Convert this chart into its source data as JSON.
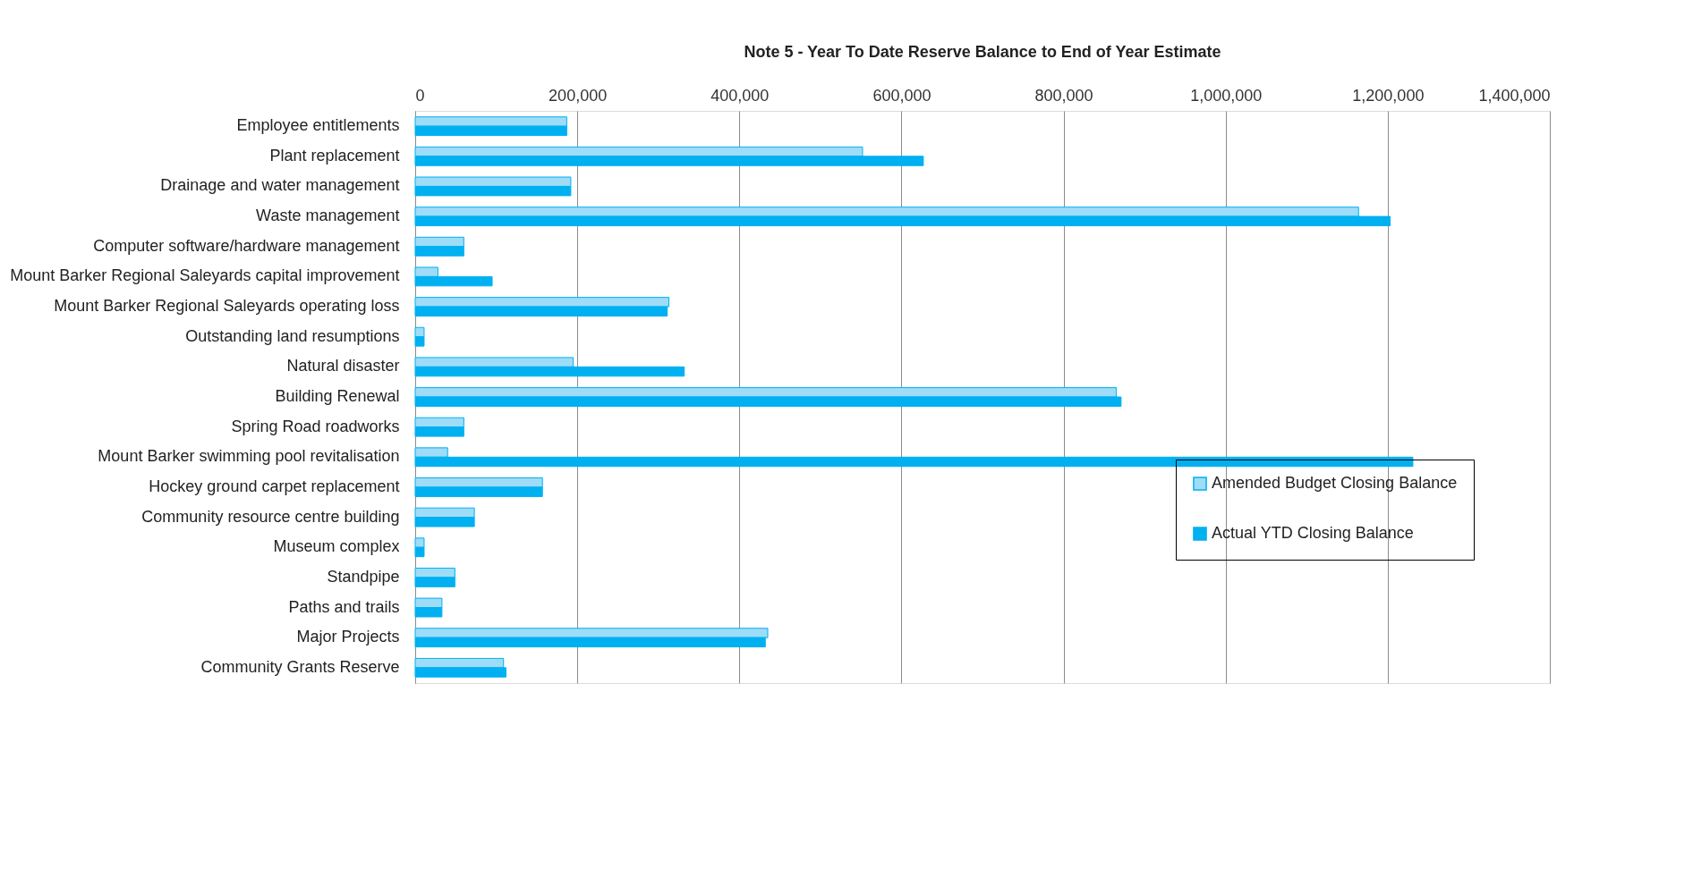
{
  "chart_data": {
    "type": "bar",
    "orientation": "horizontal",
    "title": "Note 5 - Year To Date Reserve Balance to End of Year Estimate",
    "categories": [
      "Employee entitlements",
      "Plant replacement",
      "Drainage and water management",
      "Waste management",
      "Computer software/hardware management",
      "Mount Barker Regional Saleyards capital improvement",
      "Mount Barker Regional Saleyards operating loss",
      "Outstanding land resumptions",
      "Natural disaster",
      "Building Renewal",
      "Spring Road roadworks",
      "Mount Barker swimming pool revitalisation",
      "Hockey ground carpet replacement",
      "Community resource centre building",
      "Museum complex",
      "Standpipe",
      "Paths and trails",
      "Major Projects",
      "Community Grants Reserve"
    ],
    "series": [
      {
        "name": "Amended Budget Closing Balance",
        "color": "#9fdcf7",
        "values": [
          187000,
          552000,
          192000,
          1164000,
          60000,
          28000,
          313000,
          11000,
          195000,
          865000,
          60000,
          40000,
          157000,
          73000,
          11000,
          49000,
          33000,
          435000,
          109000
        ]
      },
      {
        "name": "Actual YTD Closing Balance",
        "color": "#00b0f0",
        "values": [
          187000,
          627000,
          192000,
          1203000,
          60000,
          95000,
          311000,
          11000,
          332000,
          871000,
          60000,
          1231000,
          157000,
          73000,
          11000,
          49000,
          33000,
          432000,
          112000
        ]
      }
    ],
    "xlim": [
      0,
      1400000
    ],
    "xticks": [
      0,
      {
        "value": 200000,
        "label": "200,000"
      },
      {
        "value": 400000,
        "label": "400,000"
      },
      {
        "value": 600000,
        "label": "600,000"
      },
      {
        "value": 800000,
        "label": "800,000"
      },
      {
        "value": 1000000,
        "label": "1,000,000"
      },
      {
        "value": 1200000,
        "label": "1,200,000"
      },
      {
        "value": 1400000,
        "label": "1,400,000"
      }
    ],
    "grid": "x",
    "legend": "right"
  }
}
